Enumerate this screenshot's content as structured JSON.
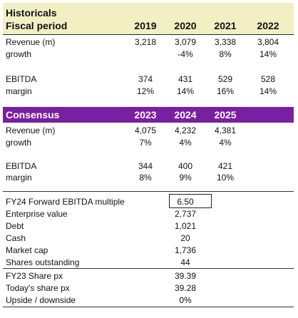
{
  "historicals": {
    "title": "Historicals",
    "period_label": "Fiscal period",
    "years": [
      "2019",
      "2020",
      "2021",
      "2022"
    ],
    "revenue_label": "Revenue (m)",
    "revenue": [
      "3,218",
      "3,079",
      "3,338",
      "3,804"
    ],
    "growth_label": "growth",
    "growth": [
      "",
      "-4%",
      "8%",
      "14%"
    ],
    "ebitda_label": "EBITDA",
    "ebitda": [
      "374",
      "431",
      "529",
      "528"
    ],
    "margin_label": "margin",
    "margin": [
      "12%",
      "14%",
      "16%",
      "14%"
    ]
  },
  "consensus": {
    "title": "Consensus",
    "years": [
      "2023",
      "2024",
      "2025"
    ],
    "revenue_label": "Revenue (m)",
    "revenue": [
      "4,075",
      "4,232",
      "4,381"
    ],
    "growth_label": "growth",
    "growth": [
      "7%",
      "4%",
      "4%"
    ],
    "ebitda_label": "EBITDA",
    "ebitda": [
      "344",
      "400",
      "421"
    ],
    "margin_label": "margin",
    "margin": [
      "8%",
      "9%",
      "10%"
    ]
  },
  "valuation": {
    "multiple_label": "FY24 Forward EBITDA multiple",
    "multiple": "6.50",
    "ev_label": "Enterprise value",
    "ev": "2,737",
    "debt_label": "Debt",
    "debt": "1,021",
    "cash_label": "Cash",
    "cash": "20",
    "mktcap_label": "Market cap",
    "mktcap": "1,736",
    "shares_label": "Shares outstanding",
    "shares": "44",
    "fy23px_label": "FY23 Share px",
    "fy23px": "39.39",
    "todaypx_label": "Today's share px",
    "todaypx": "39.28",
    "upside_label": "Upside / downside",
    "upside": "0%"
  }
}
